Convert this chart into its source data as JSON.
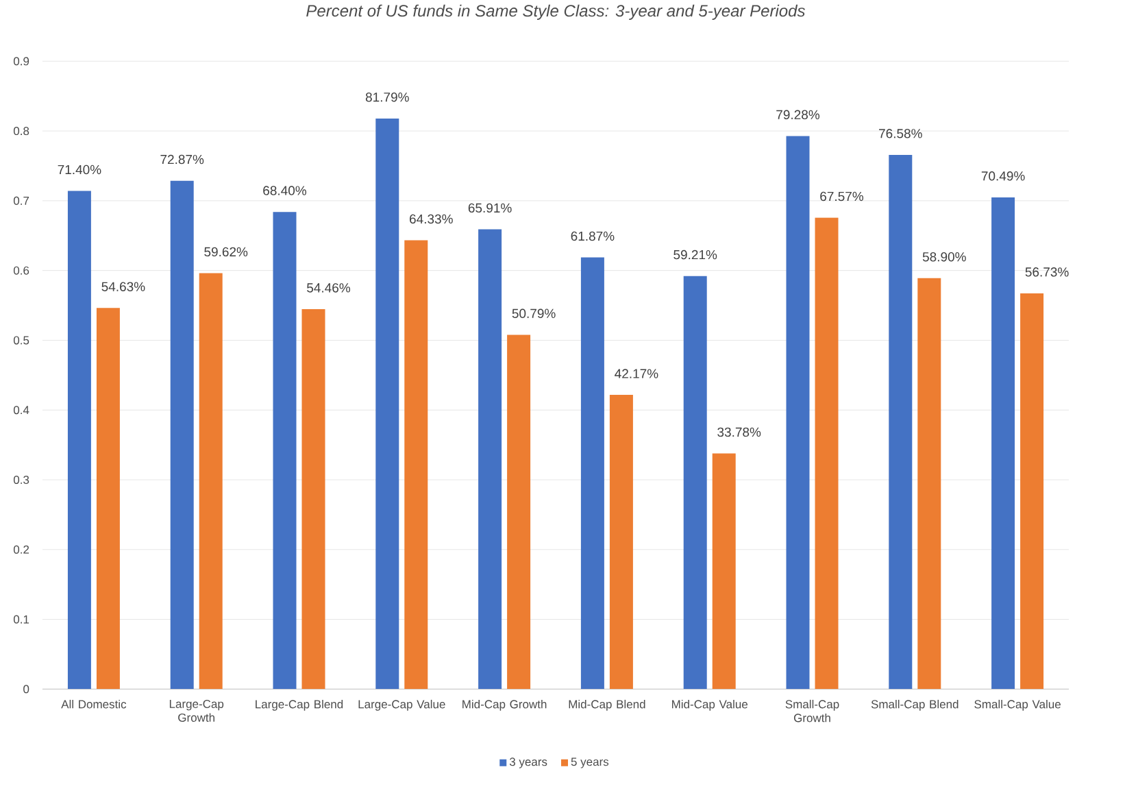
{
  "chart_data": {
    "type": "bar",
    "title": "Percent of US funds in Same Style Class: 3-year and 5-year Periods",
    "categories": [
      "All Domestic",
      "Large-Cap Growth",
      "Large-Cap Blend",
      "Large-Cap Value",
      "Mid-Cap Growth",
      "Mid-Cap Blend",
      "Mid-Cap Value",
      "Small-Cap Growth",
      "Small-Cap Blend",
      "Small-Cap Value"
    ],
    "series": [
      {
        "name": "3 years",
        "color": "#4472c4",
        "values": [
          0.714,
          0.7287,
          0.684,
          0.8179,
          0.6591,
          0.6187,
          0.5921,
          0.7928,
          0.7658,
          0.7049
        ],
        "value_labels": [
          "71.40%",
          "72.87%",
          "68.40%",
          "81.79%",
          "65.91%",
          "61.87%",
          "59.21%",
          "79.28%",
          "76.58%",
          "70.49%"
        ]
      },
      {
        "name": "5 years",
        "color": "#ed7d31",
        "values": [
          0.5463,
          0.5962,
          0.5446,
          0.6433,
          0.5079,
          0.4217,
          0.3378,
          0.6757,
          0.589,
          0.5673
        ],
        "value_labels": [
          "54.63%",
          "59.62%",
          "54.46%",
          "64.33%",
          "50.79%",
          "42.17%",
          "33.78%",
          "67.57%",
          "58.90%",
          "56.73%"
        ]
      }
    ],
    "ylim": [
      0,
      0.9
    ],
    "yticks": [
      0,
      0.1,
      0.2,
      0.3,
      0.4,
      0.5,
      0.6,
      0.7,
      0.8,
      0.9
    ],
    "grid": "y",
    "legend": "bottom"
  }
}
